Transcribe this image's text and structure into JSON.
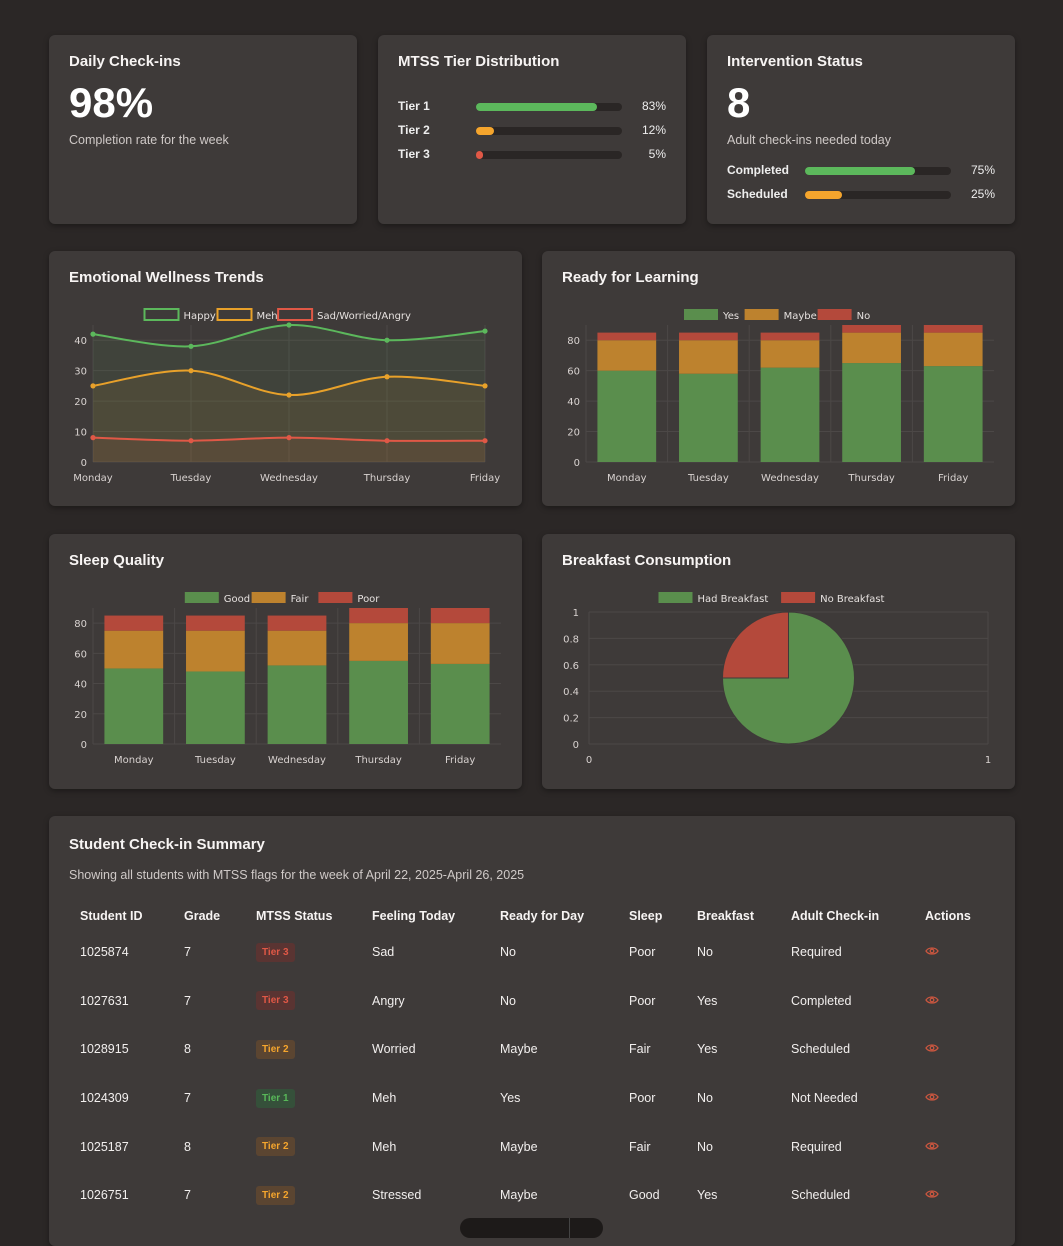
{
  "daily": {
    "title": "Daily Check-ins",
    "value": "98%",
    "subtitle": "Completion rate for the week"
  },
  "tiers": {
    "title": "MTSS Tier Distribution",
    "rows": [
      {
        "label": "Tier 1",
        "pct": "83%",
        "value": 83,
        "color": "#5cb85c"
      },
      {
        "label": "Tier 2",
        "pct": "12%",
        "value": 12,
        "color": "#f5a52d"
      },
      {
        "label": "Tier 3",
        "pct": "5%",
        "value": 5,
        "color": "#e05846"
      }
    ]
  },
  "intervention": {
    "title": "Intervention Status",
    "value": "8",
    "subtitle": "Adult check-ins needed today",
    "rows": [
      {
        "label": "Completed",
        "pct": "75%",
        "value": 75,
        "color": "#5cb85c"
      },
      {
        "label": "Scheduled",
        "pct": "25%",
        "value": 25,
        "color": "#f5a52d"
      }
    ]
  },
  "chart_data": [
    {
      "id": "emotional",
      "type": "line",
      "title": "Emotional Wellness Trends",
      "categories": [
        "Monday",
        "Tuesday",
        "Wednesday",
        "Thursday",
        "Friday"
      ],
      "ylim": [
        0,
        45
      ],
      "yticks": [
        0,
        10,
        20,
        30,
        40
      ],
      "legend": "top-center",
      "series": [
        {
          "name": "Happy",
          "values": [
            42,
            38,
            45,
            40,
            43
          ],
          "color": "#5cb85c"
        },
        {
          "name": "Meh",
          "values": [
            25,
            30,
            22,
            28,
            25
          ],
          "color": "#e8a12a"
        },
        {
          "name": "Sad/Worried/Angry",
          "values": [
            8,
            7,
            8,
            7,
            7
          ],
          "color": "#e05846"
        }
      ]
    },
    {
      "id": "ready",
      "type": "bar",
      "stacked": true,
      "title": "Ready for Learning",
      "categories": [
        "Monday",
        "Tuesday",
        "Wednesday",
        "Thursday",
        "Friday"
      ],
      "ylim": [
        0,
        90
      ],
      "yticks": [
        0,
        20,
        40,
        60,
        80
      ],
      "legend": "top-center",
      "series": [
        {
          "name": "Yes",
          "values": [
            60,
            58,
            62,
            65,
            63
          ],
          "color": "#5a8e4d"
        },
        {
          "name": "Maybe",
          "values": [
            20,
            22,
            18,
            20,
            22
          ],
          "color": "#bd822e"
        },
        {
          "name": "No",
          "values": [
            5,
            5,
            5,
            5,
            5
          ],
          "color": "#b4493b"
        }
      ]
    },
    {
      "id": "sleep",
      "type": "bar",
      "stacked": true,
      "title": "Sleep Quality",
      "categories": [
        "Monday",
        "Tuesday",
        "Wednesday",
        "Thursday",
        "Friday"
      ],
      "ylim": [
        0,
        90
      ],
      "yticks": [
        0,
        20,
        40,
        60,
        80
      ],
      "legend": "top-center",
      "series": [
        {
          "name": "Good",
          "values": [
            50,
            48,
            52,
            55,
            53
          ],
          "color": "#5a8e4d"
        },
        {
          "name": "Fair",
          "values": [
            25,
            27,
            23,
            25,
            27
          ],
          "color": "#bd822e"
        },
        {
          "name": "Poor",
          "values": [
            10,
            10,
            10,
            10,
            10
          ],
          "color": "#b4493b"
        }
      ]
    },
    {
      "id": "breakfast",
      "type": "pie",
      "title": "Breakfast Consumption",
      "xticks": [
        "0",
        "1"
      ],
      "yticks": [
        "0",
        "0.2",
        "0.4",
        "0.6",
        "0.8",
        "1"
      ],
      "legend": "top-center",
      "slices": [
        {
          "name": "Had Breakfast",
          "value": 75,
          "color": "#5a8e4d"
        },
        {
          "name": "No Breakfast",
          "value": 25,
          "color": "#b4493b"
        }
      ]
    }
  ],
  "summary": {
    "title": "Student Check-in Summary",
    "subtitle": "Showing all students with MTSS flags for the week of April 22, 2025-April 26, 2025",
    "columns": [
      "Student ID",
      "Grade",
      "MTSS Status",
      "Feeling Today",
      "Ready for Day",
      "Sleep",
      "Breakfast",
      "Adult Check-in",
      "Actions"
    ],
    "rows": [
      {
        "id": "1025874",
        "grade": "7",
        "tier": "Tier 3",
        "tier_class": "t3",
        "feeling": "Sad",
        "ready": "No",
        "sleep": "Poor",
        "breakfast": "No",
        "adult": "Required"
      },
      {
        "id": "1027631",
        "grade": "7",
        "tier": "Tier 3",
        "tier_class": "t3",
        "feeling": "Angry",
        "ready": "No",
        "sleep": "Poor",
        "breakfast": "Yes",
        "adult": "Completed"
      },
      {
        "id": "1028915",
        "grade": "8",
        "tier": "Tier 2",
        "tier_class": "t2",
        "feeling": "Worried",
        "ready": "Maybe",
        "sleep": "Fair",
        "breakfast": "Yes",
        "adult": "Scheduled"
      },
      {
        "id": "1024309",
        "grade": "7",
        "tier": "Tier 1",
        "tier_class": "t1",
        "feeling": "Meh",
        "ready": "Yes",
        "sleep": "Poor",
        "breakfast": "No",
        "adult": "Not Needed"
      },
      {
        "id": "1025187",
        "grade": "8",
        "tier": "Tier 2",
        "tier_class": "t2",
        "feeling": "Meh",
        "ready": "Maybe",
        "sleep": "Fair",
        "breakfast": "No",
        "adult": "Required"
      },
      {
        "id": "1026751",
        "grade": "7",
        "tier": "Tier 2",
        "tier_class": "t2",
        "feeling": "Stressed",
        "ready": "Maybe",
        "sleep": "Good",
        "breakfast": "Yes",
        "adult": "Scheduled"
      }
    ],
    "action_icon": "eye-icon"
  }
}
